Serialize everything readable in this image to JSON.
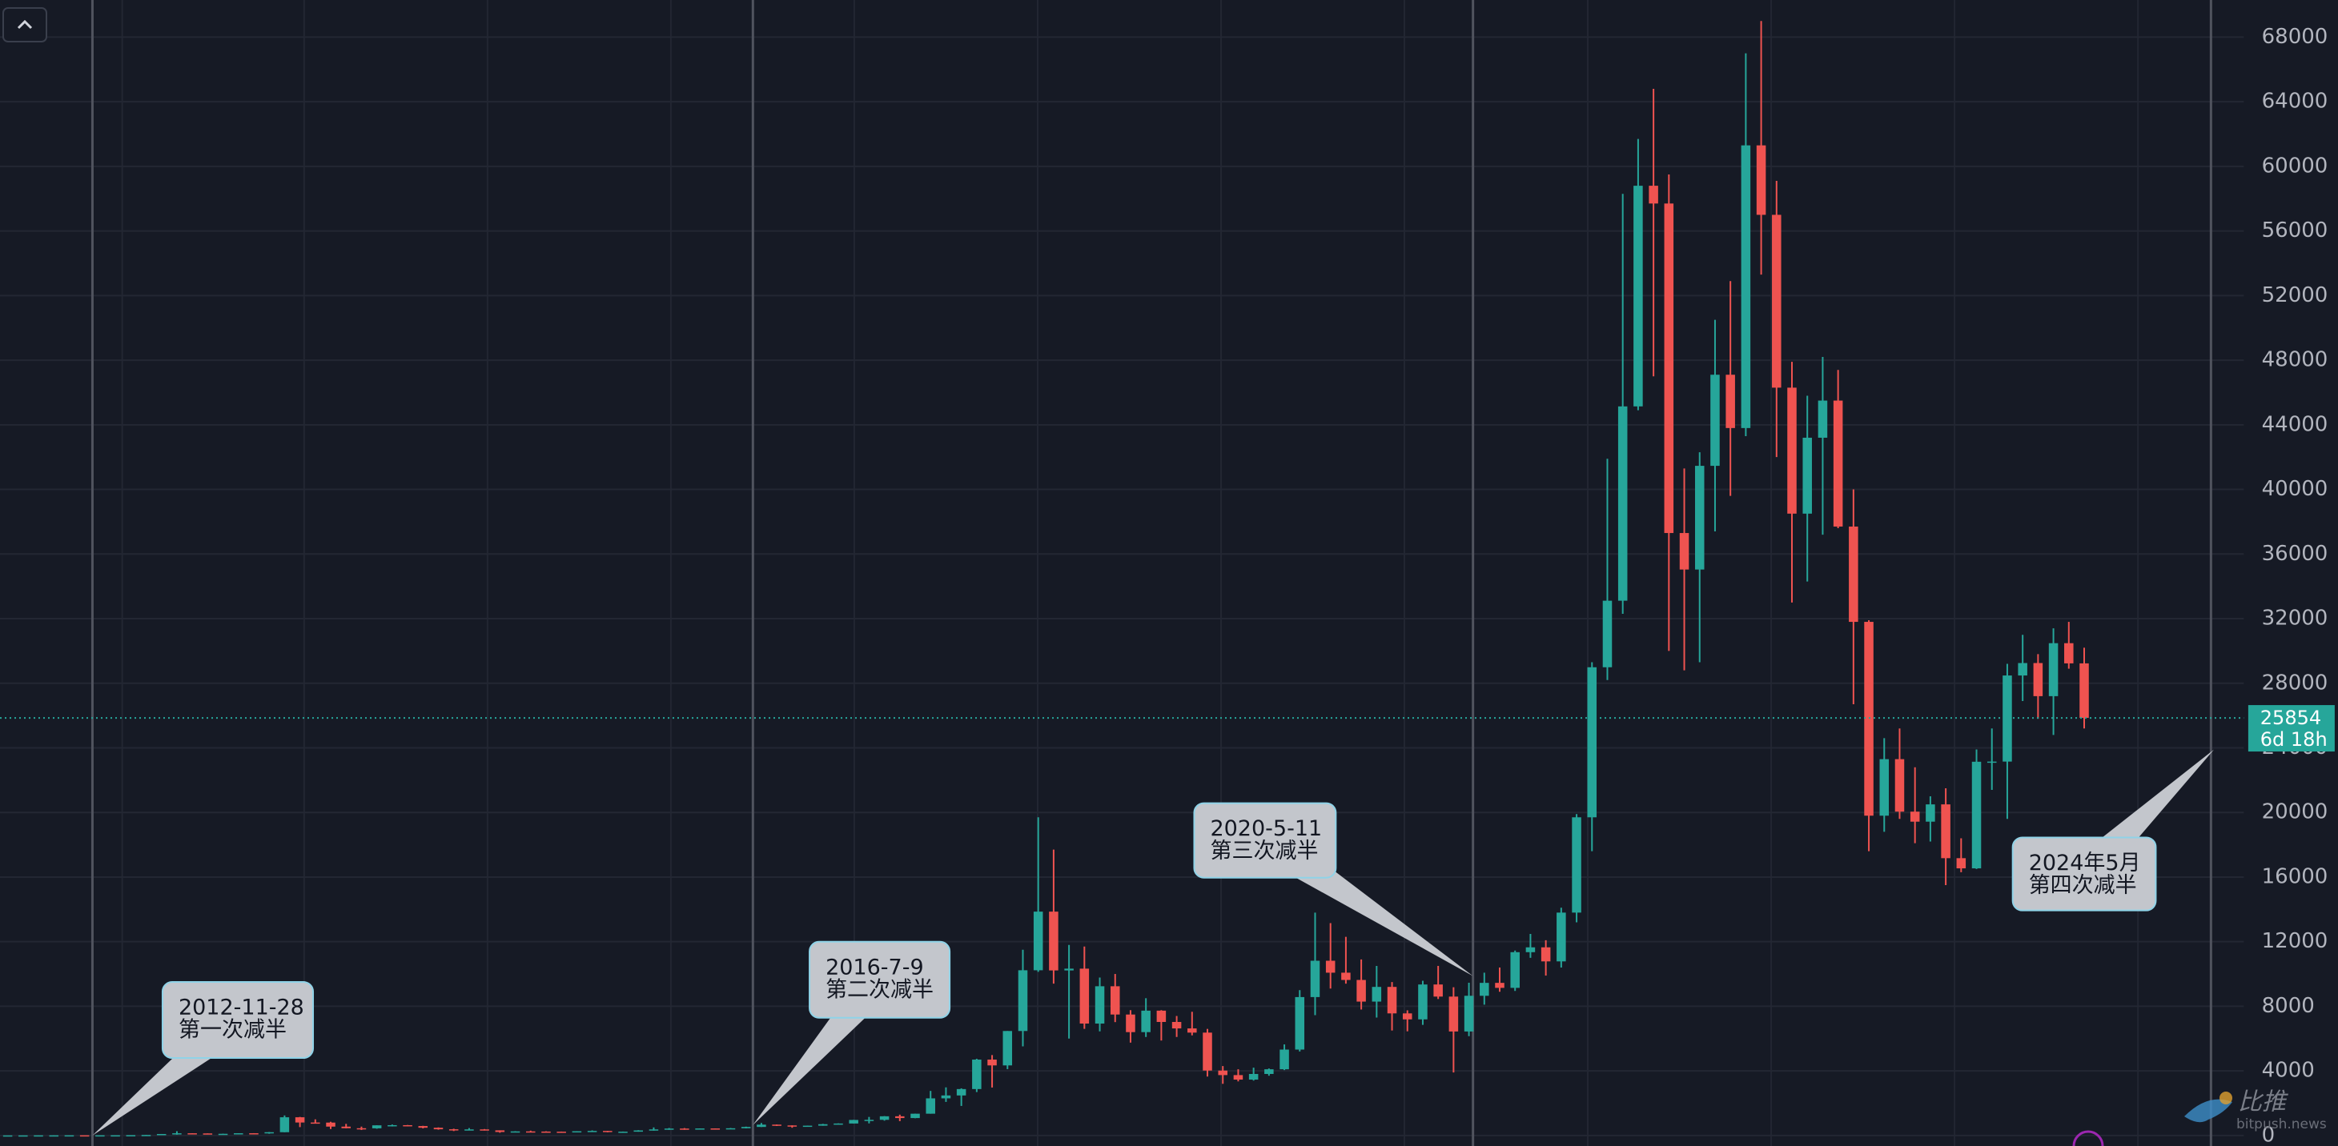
{
  "chart_data": {
    "type": "candlestick",
    "up_color": "#26a69a",
    "down_color": "#ef5350",
    "ylim": [
      -650,
      70300
    ],
    "yticks": [
      0,
      4000,
      8000,
      12000,
      16000,
      20000,
      24000,
      28000,
      32000,
      36000,
      40000,
      44000,
      48000,
      52000,
      56000,
      60000,
      64000,
      68000
    ],
    "grid": true,
    "last_price": 25854,
    "countdown": "6d 18h",
    "annotations": [
      [
        "2012-11-28",
        "第一次减半"
      ],
      [
        "2016-7-9",
        "第二次减半"
      ],
      [
        "2020-5-11",
        "第三次减半"
      ],
      [
        "2024年5月",
        "第四次减半"
      ]
    ],
    "watermark": [
      "比推",
      "bitpush.news"
    ],
    "candles": [
      [
        5,
        5.4,
        4.9,
        5.2
      ],
      [
        5.2,
        6.8,
        5.1,
        6.7
      ],
      [
        6.7,
        9.5,
        6.5,
        9.4
      ],
      [
        9.4,
        16,
        7,
        10
      ],
      [
        10,
        12.5,
        9.9,
        12.4
      ],
      [
        12.4,
        12.6,
        10.3,
        11
      ],
      [
        11,
        12.6,
        10.6,
        12.5
      ],
      [
        12.5,
        13.6,
        12.4,
        13.5
      ],
      [
        13.5,
        20,
        13.2,
        20
      ],
      [
        20,
        33,
        19.5,
        33
      ],
      [
        33,
        95,
        33,
        93
      ],
      [
        93,
        266,
        50,
        139
      ],
      [
        139,
        140,
        80,
        129
      ],
      [
        129,
        130,
        90,
        97
      ],
      [
        97,
        110,
        65,
        106
      ],
      [
        106,
        141,
        100,
        141
      ],
      [
        141,
        145,
        110,
        133
      ],
      [
        133,
        215,
        110,
        204
      ],
      [
        204,
        1242,
        200,
        1129
      ],
      [
        1129,
        1150,
        520,
        805
      ],
      [
        805,
        1000,
        760,
        800
      ],
      [
        800,
        850,
        400,
        550
      ],
      [
        550,
        720,
        440,
        450
      ],
      [
        450,
        550,
        340,
        445
      ],
      [
        445,
        630,
        420,
        630
      ],
      [
        630,
        680,
        560,
        640
      ],
      [
        640,
        650,
        570,
        585
      ],
      [
        585,
        600,
        440,
        480
      ],
      [
        480,
        500,
        360,
        386
      ],
      [
        386,
        420,
        275,
        338
      ],
      [
        338,
        460,
        320,
        378
      ],
      [
        378,
        400,
        310,
        320
      ],
      [
        320,
        320,
        170,
        217
      ],
      [
        217,
        265,
        210,
        254
      ],
      [
        254,
        300,
        240,
        244
      ],
      [
        244,
        260,
        215,
        236
      ],
      [
        236,
        245,
        225,
        230
      ],
      [
        230,
        265,
        220,
        263
      ],
      [
        263,
        315,
        255,
        284
      ],
      [
        284,
        285,
        200,
        230
      ],
      [
        230,
        245,
        225,
        236
      ],
      [
        236,
        330,
        235,
        314
      ],
      [
        314,
        500,
        300,
        377
      ],
      [
        377,
        465,
        350,
        430
      ],
      [
        430,
        460,
        355,
        368
      ],
      [
        368,
        440,
        365,
        437
      ],
      [
        437,
        440,
        400,
        416
      ],
      [
        416,
        465,
        415,
        448
      ],
      [
        448,
        550,
        440,
        531
      ],
      [
        531,
        775,
        525,
        673
      ],
      [
        673,
        680,
        590,
        624
      ],
      [
        624,
        630,
        480,
        575
      ],
      [
        575,
        610,
        570,
        609
      ],
      [
        609,
        720,
        605,
        700
      ],
      [
        700,
        750,
        690,
        742
      ],
      [
        742,
        970,
        740,
        963
      ],
      [
        963,
        1150,
        750,
        970
      ],
      [
        970,
        1200,
        920,
        1190
      ],
      [
        1190,
        1290,
        890,
        1080
      ],
      [
        1080,
        1350,
        1070,
        1350
      ],
      [
        1350,
        2760,
        1350,
        2300
      ],
      [
        2300,
        2980,
        2080,
        2480
      ],
      [
        2480,
        2920,
        1830,
        2875
      ],
      [
        2875,
        4750,
        2690,
        4700
      ],
      [
        4700,
        4980,
        2970,
        4340
      ],
      [
        4340,
        6470,
        4110,
        6470
      ],
      [
        6470,
        11500,
        5520,
        10230
      ],
      [
        10230,
        19700,
        10130,
        13860
      ],
      [
        13860,
        17700,
        9400,
        10220
      ],
      [
        10220,
        11800,
        6000,
        10330
      ],
      [
        10330,
        11700,
        6600,
        6930
      ],
      [
        6930,
        9780,
        6450,
        9240
      ],
      [
        9240,
        10000,
        7020,
        7490
      ],
      [
        7490,
        7760,
        5750,
        6400
      ],
      [
        6400,
        8500,
        6100,
        7730
      ],
      [
        7730,
        7760,
        5880,
        7030
      ],
      [
        7030,
        7400,
        6100,
        6630
      ],
      [
        6630,
        7660,
        6200,
        6370
      ],
      [
        6370,
        6600,
        3650,
        4020
      ],
      [
        4020,
        4300,
        3200,
        3740
      ],
      [
        3740,
        4100,
        3350,
        3460
      ],
      [
        3460,
        4200,
        3400,
        3810
      ],
      [
        3810,
        4150,
        3700,
        4100
      ],
      [
        4100,
        5640,
        4050,
        5320
      ],
      [
        5320,
        9000,
        5200,
        8570
      ],
      [
        8570,
        13800,
        7450,
        10820
      ],
      [
        10820,
        13150,
        9100,
        10080
      ],
      [
        10080,
        12300,
        9400,
        9630
      ],
      [
        9630,
        10900,
        7800,
        8290
      ],
      [
        8290,
        10500,
        7300,
        9200
      ],
      [
        9200,
        9500,
        6500,
        7560
      ],
      [
        7560,
        7750,
        6450,
        7190
      ],
      [
        7190,
        9580,
        6850,
        9350
      ],
      [
        9350,
        10500,
        8450,
        8600
      ],
      [
        8600,
        9180,
        3900,
        6440
      ],
      [
        6440,
        9460,
        6150,
        8650
      ],
      [
        8650,
        10080,
        8100,
        9450
      ],
      [
        9450,
        10400,
        8900,
        9140
      ],
      [
        9140,
        11450,
        8950,
        11350
      ],
      [
        11350,
        12480,
        11000,
        11650
      ],
      [
        11650,
        12090,
        9900,
        10780
      ],
      [
        10780,
        14100,
        10400,
        13800
      ],
      [
        13800,
        19900,
        13200,
        19700
      ],
      [
        19700,
        29300,
        17600,
        28990
      ],
      [
        28990,
        41900,
        28200,
        33110
      ],
      [
        33110,
        58300,
        32300,
        45140
      ],
      [
        45140,
        61700,
        44900,
        58800
      ],
      [
        58800,
        64800,
        47000,
        57700
      ],
      [
        57700,
        59500,
        30000,
        37300
      ],
      [
        37300,
        41300,
        28800,
        35040
      ],
      [
        35040,
        42300,
        29300,
        41460
      ],
      [
        41460,
        50500,
        37400,
        47100
      ],
      [
        47100,
        52900,
        39600,
        43800
      ],
      [
        43800,
        67000,
        43300,
        61300
      ],
      [
        61300,
        69000,
        53300,
        57000
      ],
      [
        57000,
        59100,
        42000,
        46300
      ],
      [
        46300,
        47900,
        33000,
        38500
      ],
      [
        38500,
        45800,
        34300,
        43200
      ],
      [
        43200,
        48200,
        37200,
        45500
      ],
      [
        45500,
        47400,
        37600,
        37700
      ],
      [
        37700,
        40000,
        26700,
        31800
      ],
      [
        31800,
        31900,
        17600,
        19800
      ],
      [
        19800,
        24600,
        18800,
        23300
      ],
      [
        23300,
        25200,
        19600,
        20050
      ],
      [
        20050,
        22800,
        18100,
        19430
      ],
      [
        19430,
        21000,
        18200,
        20500
      ],
      [
        20500,
        21500,
        15500,
        17170
      ],
      [
        17170,
        18400,
        16300,
        16540
      ],
      [
        16540,
        23900,
        16500,
        23140
      ],
      [
        23140,
        25200,
        21400,
        23150
      ],
      [
        23150,
        29200,
        19600,
        28480
      ],
      [
        28480,
        31000,
        26900,
        29250
      ],
      [
        29250,
        29800,
        25800,
        27200
      ],
      [
        27200,
        31400,
        24800,
        30480
      ],
      [
        30480,
        31800,
        28900,
        29230
      ],
      [
        29230,
        30200,
        25200,
        25854
      ]
    ]
  }
}
